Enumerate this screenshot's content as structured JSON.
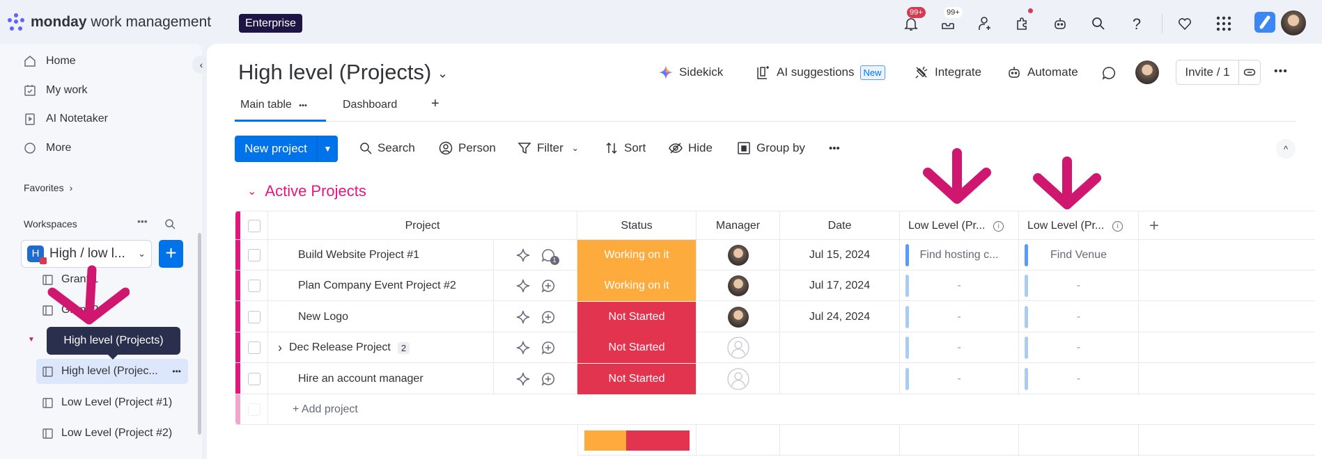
{
  "app": {
    "brand_bold": "monday",
    "brand_rest": "work management",
    "plan_badge": "Enterprise",
    "notifications_badge": "99+",
    "inbox_badge": "99+"
  },
  "sidebar": {
    "nav": [
      {
        "label": "Home",
        "icon": "home-icon"
      },
      {
        "label": "My work",
        "icon": "calendar-check-icon"
      },
      {
        "label": "AI Notetaker",
        "icon": "notetaker-icon"
      },
      {
        "label": "More",
        "icon": "more-circle-icon"
      }
    ],
    "favorites_label": "Favorites",
    "workspaces_label": "Workspaces",
    "workspace": {
      "name": "High / low l...",
      "initial": "H"
    },
    "boards": [
      {
        "label": "Grant 1"
      },
      {
        "label": "Grant 2"
      },
      {
        "label": "High level (Projec...",
        "active": true
      },
      {
        "label": "Low Level (Project #1)"
      },
      {
        "label": "Low Level (Project #2)"
      }
    ],
    "tooltip": "High level (Projects)"
  },
  "board": {
    "title": "High level (Projects)",
    "header_actions": {
      "sidekick": "Sidekick",
      "ai_suggestions": "AI suggestions",
      "new_badge": "New",
      "integrate": "Integrate",
      "automate": "Automate",
      "invite": "Invite / 1"
    },
    "tabs": [
      {
        "label": "Main table",
        "active": true
      },
      {
        "label": "Dashboard"
      }
    ],
    "toolbar": {
      "new_item": "New project",
      "search": "Search",
      "person": "Person",
      "filter": "Filter",
      "sort": "Sort",
      "hide": "Hide",
      "group_by": "Group by"
    },
    "group": {
      "title": "Active Projects",
      "color": "#e0177f"
    },
    "columns": [
      "Project",
      "Status",
      "Manager",
      "Date",
      "Low Level (Pr...",
      "Low Level (Pr..."
    ],
    "rows": [
      {
        "name": "Build Website Project #1",
        "status": "Working on it",
        "status_color": "#fdab3d",
        "manager": true,
        "date": "Jul 15, 2024",
        "low1": "Find hosting c...",
        "low2": "Find Venue",
        "updates": "1"
      },
      {
        "name": "Plan Company Event Project #2",
        "status": "Working on it",
        "status_color": "#fdab3d",
        "manager": true,
        "date": "Jul 17, 2024",
        "low1": "-",
        "low2": "-"
      },
      {
        "name": "New Logo",
        "status": "Not Started",
        "status_color": "#e2334f",
        "manager": true,
        "date": "Jul 24, 2024",
        "low1": "-",
        "low2": "-"
      },
      {
        "name": "Dec Release Project",
        "subitems": "2",
        "status": "Not Started",
        "status_color": "#e2334f",
        "manager": false,
        "date": "",
        "low1": "-",
        "low2": "-"
      },
      {
        "name": "Hire an account manager",
        "status": "Not Started",
        "status_color": "#e2334f",
        "manager": false,
        "date": "",
        "low1": "-",
        "low2": "-"
      }
    ],
    "add_item": "+ Add project",
    "status_summary": [
      {
        "label": "Working on it",
        "fraction": 0.4,
        "color": "#fdab3d"
      },
      {
        "label": "Not Started",
        "fraction": 0.6,
        "color": "#e2334f"
      }
    ]
  },
  "colors": {
    "primary": "#0073ea",
    "annotation_arrow": "#d0176f"
  }
}
